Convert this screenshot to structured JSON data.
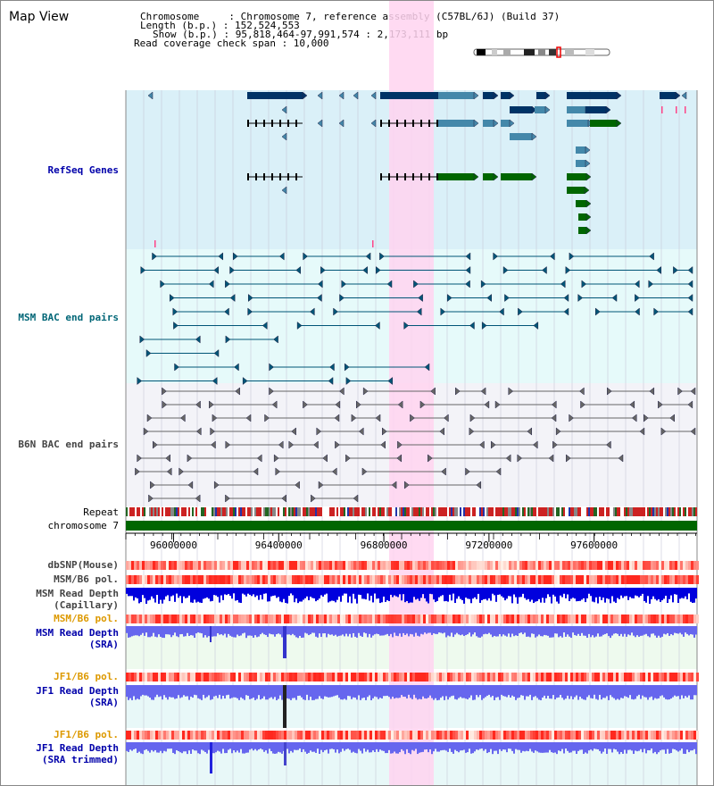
{
  "view": {
    "title": "Map View",
    "info_lines": [
      "Chromosome     : Chromosome 7, reference assembly (C57BL/6J) (Build 37)",
      "Length (b.p.) : 152,524,553",
      "Show (b.p.) : 95,818,464-97,991,574 : 2,173,111 bp",
      "Read coverage check span : 10,000"
    ]
  },
  "tracks": {
    "refseq": "RefSeq Genes",
    "msm_bac": "MSM BAC end pairs",
    "b6n_bac": "B6N BAC end pairs",
    "repeat": "Repeat",
    "chromosome": "chromosome 7",
    "dbsnp": "dbSNP(Mouse)",
    "msm_b6_pol": "MSM/B6 pol.",
    "msm_cap_1": "MSM Read Depth",
    "msm_cap_2": "(Capillary)",
    "msm_b6_pol2": "MSM/B6 pol.",
    "msm_sra_1": "MSM Read Depth",
    "msm_sra_2": "(SRA)",
    "jf1_b6_pol": "JF1/B6 pol.",
    "jf1_sra_1": "JF1 Read Depth",
    "jf1_sra_2": "(SRA)",
    "jf1_b6_pol2": "JF1/B6 pol.",
    "jf1_trim_1": "JF1 Read Depth",
    "jf1_trim_2": "(SRA trimmed)"
  },
  "axis": {
    "ticks": [
      {
        "label": "96000000",
        "value": 96000000
      },
      {
        "label": "96400000",
        "value": 96400000
      },
      {
        "label": "96800000",
        "value": 96800000
      },
      {
        "label": "97200000",
        "value": 97200000
      },
      {
        "label": "97600000",
        "value": 97600000
      }
    ]
  },
  "colors": {
    "refseq_bg": "#daf0f8",
    "msm_bg": "#e6fafa",
    "b6n_bg": "#f3f3f8",
    "highlight": "#ffd4f0",
    "gene_dark": "#003366",
    "gene_mid": "#4488aa",
    "gene_green": "#006600",
    "msm_line": "#005577",
    "b6n_line": "#666666",
    "chrom_bar": "#006600",
    "depth_blue": "#0000dd",
    "depth_lightblue": "#6666ee"
  }
}
